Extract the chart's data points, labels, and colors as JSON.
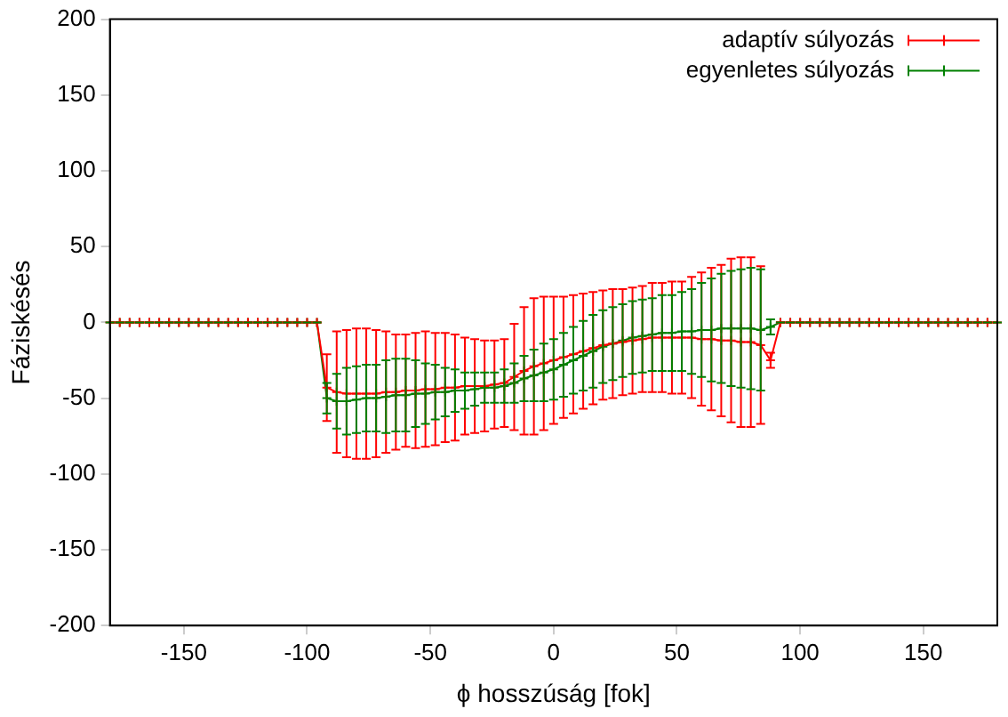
{
  "chart_data": {
    "type": "line",
    "xlabel": "ϕ hosszúság [fok]",
    "ylabel": "Fáziskésés",
    "xlim": [
      -180,
      180
    ],
    "xticks": [
      -150,
      -100,
      -50,
      0,
      50,
      100,
      150
    ],
    "ylim": [
      -200,
      200
    ],
    "yticks": [
      -200,
      -150,
      -100,
      -50,
      0,
      50,
      100,
      150,
      200
    ],
    "grid": false,
    "legend": "top right",
    "marker": "cross",
    "line_style": "solid",
    "x": [
      -180,
      -176,
      -172,
      -168,
      -164,
      -160,
      -156,
      -152,
      -148,
      -144,
      -140,
      -136,
      -132,
      -128,
      -124,
      -120,
      -116,
      -112,
      -108,
      -104,
      -100,
      -96,
      -92,
      -88,
      -84,
      -80,
      -76,
      -72,
      -68,
      -64,
      -60,
      -56,
      -52,
      -48,
      -44,
      -40,
      -36,
      -32,
      -28,
      -24,
      -20,
      -16,
      -12,
      -8,
      -4,
      0,
      4,
      8,
      12,
      16,
      20,
      24,
      28,
      32,
      36,
      40,
      44,
      48,
      52,
      56,
      60,
      64,
      68,
      72,
      76,
      80,
      84,
      88,
      92,
      96,
      100,
      104,
      108,
      112,
      116,
      120,
      124,
      128,
      132,
      136,
      140,
      144,
      148,
      152,
      156,
      160,
      164,
      168,
      172,
      176,
      180
    ],
    "series": [
      {
        "name": "adaptív súlyozás",
        "color": "#ff0000",
        "values": [
          0,
          0,
          0,
          0,
          0,
          0,
          0,
          0,
          0,
          0,
          0,
          0,
          0,
          0,
          0,
          0,
          0,
          0,
          0,
          0,
          0,
          0,
          -43,
          -46,
          -47,
          -47,
          -47,
          -47,
          -46,
          -46,
          -45,
          -45,
          -44,
          -44,
          -43,
          -43,
          -42,
          -42,
          -42,
          -41,
          -40,
          -36,
          -32,
          -29,
          -27,
          -25,
          -23,
          -21,
          -19,
          -17,
          -15,
          -14,
          -13,
          -12,
          -11,
          -10,
          -10,
          -10,
          -10,
          -10,
          -11,
          -11,
          -12,
          -12,
          -13,
          -13,
          -15,
          -25,
          0,
          0,
          0,
          0,
          0,
          0,
          0,
          0,
          0,
          0,
          0,
          0,
          0,
          0,
          0,
          0,
          0,
          0,
          0,
          0,
          0,
          0,
          0
        ],
        "errors": [
          0,
          0,
          0,
          0,
          0,
          0,
          0,
          0,
          0,
          0,
          0,
          0,
          0,
          0,
          0,
          0,
          0,
          0,
          0,
          0,
          0,
          0,
          22,
          40,
          42,
          43,
          43,
          42,
          40,
          38,
          37,
          38,
          38,
          37,
          36,
          35,
          32,
          31,
          30,
          29,
          29,
          35,
          42,
          45,
          44,
          42,
          40,
          39,
          38,
          37,
          36,
          36,
          35,
          35,
          35,
          36,
          36,
          37,
          37,
          40,
          44,
          47,
          50,
          54,
          56,
          56,
          52,
          5,
          0,
          0,
          0,
          0,
          0,
          0,
          0,
          0,
          0,
          0,
          0,
          0,
          0,
          0,
          0,
          0,
          0,
          0,
          0,
          0,
          0,
          0,
          0
        ]
      },
      {
        "name": "egyenletes súlyozás",
        "color": "#008000",
        "values": [
          0,
          0,
          0,
          0,
          0,
          0,
          0,
          0,
          0,
          0,
          0,
          0,
          0,
          0,
          0,
          0,
          0,
          0,
          0,
          0,
          0,
          0,
          -50,
          -52,
          -52,
          -51,
          -50,
          -50,
          -49,
          -48,
          -48,
          -47,
          -47,
          -46,
          -46,
          -45,
          -45,
          -44,
          -43,
          -43,
          -42,
          -40,
          -37,
          -35,
          -33,
          -31,
          -28,
          -25,
          -22,
          -19,
          -16,
          -14,
          -12,
          -10,
          -9,
          -8,
          -7,
          -7,
          -6,
          -6,
          -5,
          -5,
          -4,
          -4,
          -4,
          -4,
          -5,
          -3,
          0,
          0,
          0,
          0,
          0,
          0,
          0,
          0,
          0,
          0,
          0,
          0,
          0,
          0,
          0,
          0,
          0,
          0,
          0,
          0,
          0,
          0,
          0
        ],
        "errors": [
          0,
          0,
          0,
          0,
          0,
          0,
          0,
          0,
          0,
          0,
          0,
          0,
          0,
          0,
          0,
          0,
          0,
          0,
          0,
          0,
          0,
          0,
          10,
          18,
          22,
          22,
          22,
          22,
          24,
          24,
          24,
          22,
          20,
          18,
          16,
          14,
          12,
          11,
          10,
          10,
          11,
          13,
          15,
          17,
          19,
          20,
          21,
          22,
          23,
          24,
          24,
          24,
          24,
          24,
          24,
          24,
          25,
          25,
          26,
          28,
          31,
          34,
          36,
          38,
          39,
          40,
          40,
          5,
          0,
          0,
          0,
          0,
          0,
          0,
          0,
          0,
          0,
          0,
          0,
          0,
          0,
          0,
          0,
          0,
          0,
          0,
          0,
          0,
          0,
          0,
          0
        ]
      }
    ]
  }
}
